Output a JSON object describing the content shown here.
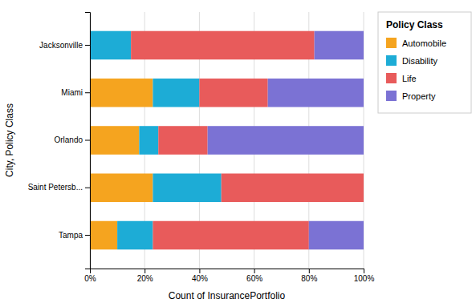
{
  "chart_data": {
    "type": "bar",
    "orientation": "horizontal",
    "stacked": true,
    "xlabel": "Count of InsurancePortfolio",
    "ylabel": "City, Policy Class",
    "legend_title": "Policy Class",
    "legend": "right",
    "grid": true,
    "categories": [
      "Tampa",
      "Saint Petersb...",
      "Orlando",
      "Miami",
      "Jacksonville"
    ],
    "series": [
      {
        "name": "Automobile",
        "color": "#F5A41F",
        "values": [
          0.1,
          0.23,
          0.18,
          0.23,
          0.0
        ]
      },
      {
        "name": "Disability",
        "color": "#1DACD6",
        "values": [
          0.13,
          0.25,
          0.07,
          0.17,
          0.15
        ]
      },
      {
        "name": "Life",
        "color": "#E85B5B",
        "values": [
          0.57,
          0.52,
          0.18,
          0.25,
          0.67
        ]
      },
      {
        "name": "Property",
        "color": "#7B72D4",
        "values": [
          0.2,
          0.0,
          0.57,
          0.35,
          0.18
        ]
      }
    ],
    "xlim": [
      0.0,
      1.0
    ],
    "xticks": [
      {
        "value": 0.0,
        "label": "0%"
      },
      {
        "value": 0.2,
        "label": "20%"
      },
      {
        "value": 0.4,
        "label": "40%"
      },
      {
        "value": 0.6,
        "label": "60%"
      },
      {
        "value": 0.8,
        "label": "80%"
      },
      {
        "value": 1.0,
        "label": "100%"
      }
    ]
  }
}
